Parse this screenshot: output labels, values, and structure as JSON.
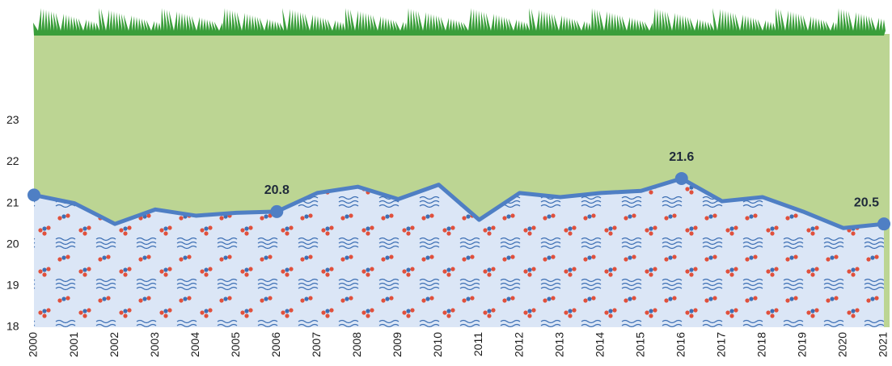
{
  "chart_data": {
    "type": "area",
    "categories": [
      "2000",
      "2001",
      "2002",
      "2003",
      "2004",
      "2005",
      "2006",
      "2007",
      "2008",
      "2009",
      "2010",
      "2011",
      "2012",
      "2013",
      "2014",
      "2015",
      "2016",
      "2017",
      "2018",
      "2019",
      "2020",
      "2021"
    ],
    "values": [
      21.2,
      21.0,
      20.5,
      20.85,
      20.7,
      20.77,
      20.8,
      21.25,
      21.4,
      21.1,
      21.45,
      20.6,
      21.25,
      21.15,
      21.25,
      21.3,
      21.6,
      21.05,
      21.15,
      20.8,
      20.4,
      20.5
    ],
    "marker_indices": [
      0,
      6,
      16,
      21
    ],
    "label_indices": [
      6,
      16,
      21
    ],
    "color": "#4f7fc4",
    "area_color": "#dbe6f6",
    "background_color": "#bcd593",
    "grass_color": "#3a9e3a",
    "ylim": [
      18,
      25.1
    ],
    "yticks": [
      18,
      19,
      20,
      21,
      22,
      23
    ]
  }
}
